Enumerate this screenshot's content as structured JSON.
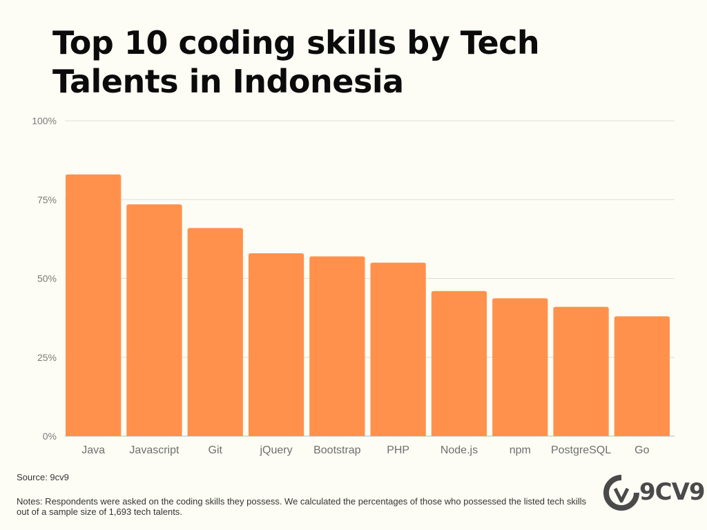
{
  "chart_data": {
    "type": "bar",
    "title": "Top 10 coding skills by Tech Talents in Indonesia",
    "xlabel": "",
    "ylabel": "",
    "categories": [
      "Java",
      "Javascript",
      "Git",
      "jQuery",
      "Bootstrap",
      "PHP",
      "Node.js",
      "npm",
      "PostgreSQL",
      "Go"
    ],
    "values": [
      83,
      73.5,
      66,
      58,
      57,
      55,
      46,
      43.7,
      41,
      38
    ],
    "ylim": [
      0,
      100
    ],
    "yticks": [
      "0%",
      "25%",
      "50%",
      "75%",
      "100%"
    ],
    "grid": true,
    "bar_color": "#ff914d"
  },
  "footer": {
    "source": "Source: 9cv9",
    "notes": "Notes: Respondents were asked on the coding skills they possess. We calculated the percentages of those who possessed the listed tech skills out of a sample size of 1,693 tech talents."
  },
  "logo": {
    "text": "9CV9",
    "icon": "9cv9-logo-icon"
  }
}
